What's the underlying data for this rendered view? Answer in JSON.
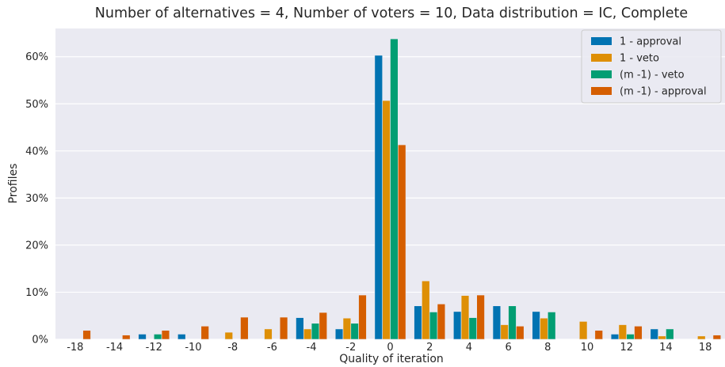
{
  "chart_data": {
    "type": "bar",
    "title": "Number of alternatives = 4, Number of voters = 10, Data distribution = IC, Complete",
    "xlabel": "Quality of iteration",
    "ylabel": "Profiles",
    "x_ticks": [
      "-18",
      "-14",
      "-12",
      "-10",
      "-8",
      "-6",
      "-4",
      "-2",
      "0",
      "2",
      "4",
      "6",
      "8",
      "10",
      "12",
      "14",
      "18"
    ],
    "y_ticks": [
      "0%",
      "10%",
      "20%",
      "30%",
      "40%",
      "50%",
      "60%"
    ],
    "ylim": [
      0,
      66
    ],
    "grid": true,
    "legend_position": "top-right",
    "series": [
      {
        "name": "1 - approval",
        "color": "#0173b2",
        "values": [
          0,
          0,
          1.1,
          1.1,
          0,
          0,
          4.6,
          2.2,
          60.3,
          7.1,
          5.9,
          7.1,
          5.9,
          0,
          1.1,
          2.2,
          0
        ]
      },
      {
        "name": "1 - veto",
        "color": "#de8f05",
        "values": [
          0,
          0,
          0,
          0,
          1.5,
          2.2,
          2.2,
          4.5,
          50.7,
          12.4,
          9.3,
          3.1,
          4.5,
          3.8,
          3.1,
          0.7,
          0.7
        ]
      },
      {
        "name": "(m -1) - veto",
        "color": "#029e73",
        "values": [
          0,
          0,
          1.1,
          0,
          0,
          0,
          3.4,
          3.4,
          63.8,
          5.8,
          4.6,
          7.1,
          5.8,
          0,
          1.1,
          2.2,
          0
        ]
      },
      {
        "name": "(m -1) - approval",
        "color": "#d55e00",
        "values": [
          1.9,
          0.9,
          1.9,
          2.8,
          4.7,
          4.7,
          5.7,
          9.4,
          41.3,
          7.5,
          9.4,
          2.8,
          0,
          1.9,
          2.8,
          0,
          0.9
        ]
      }
    ]
  }
}
